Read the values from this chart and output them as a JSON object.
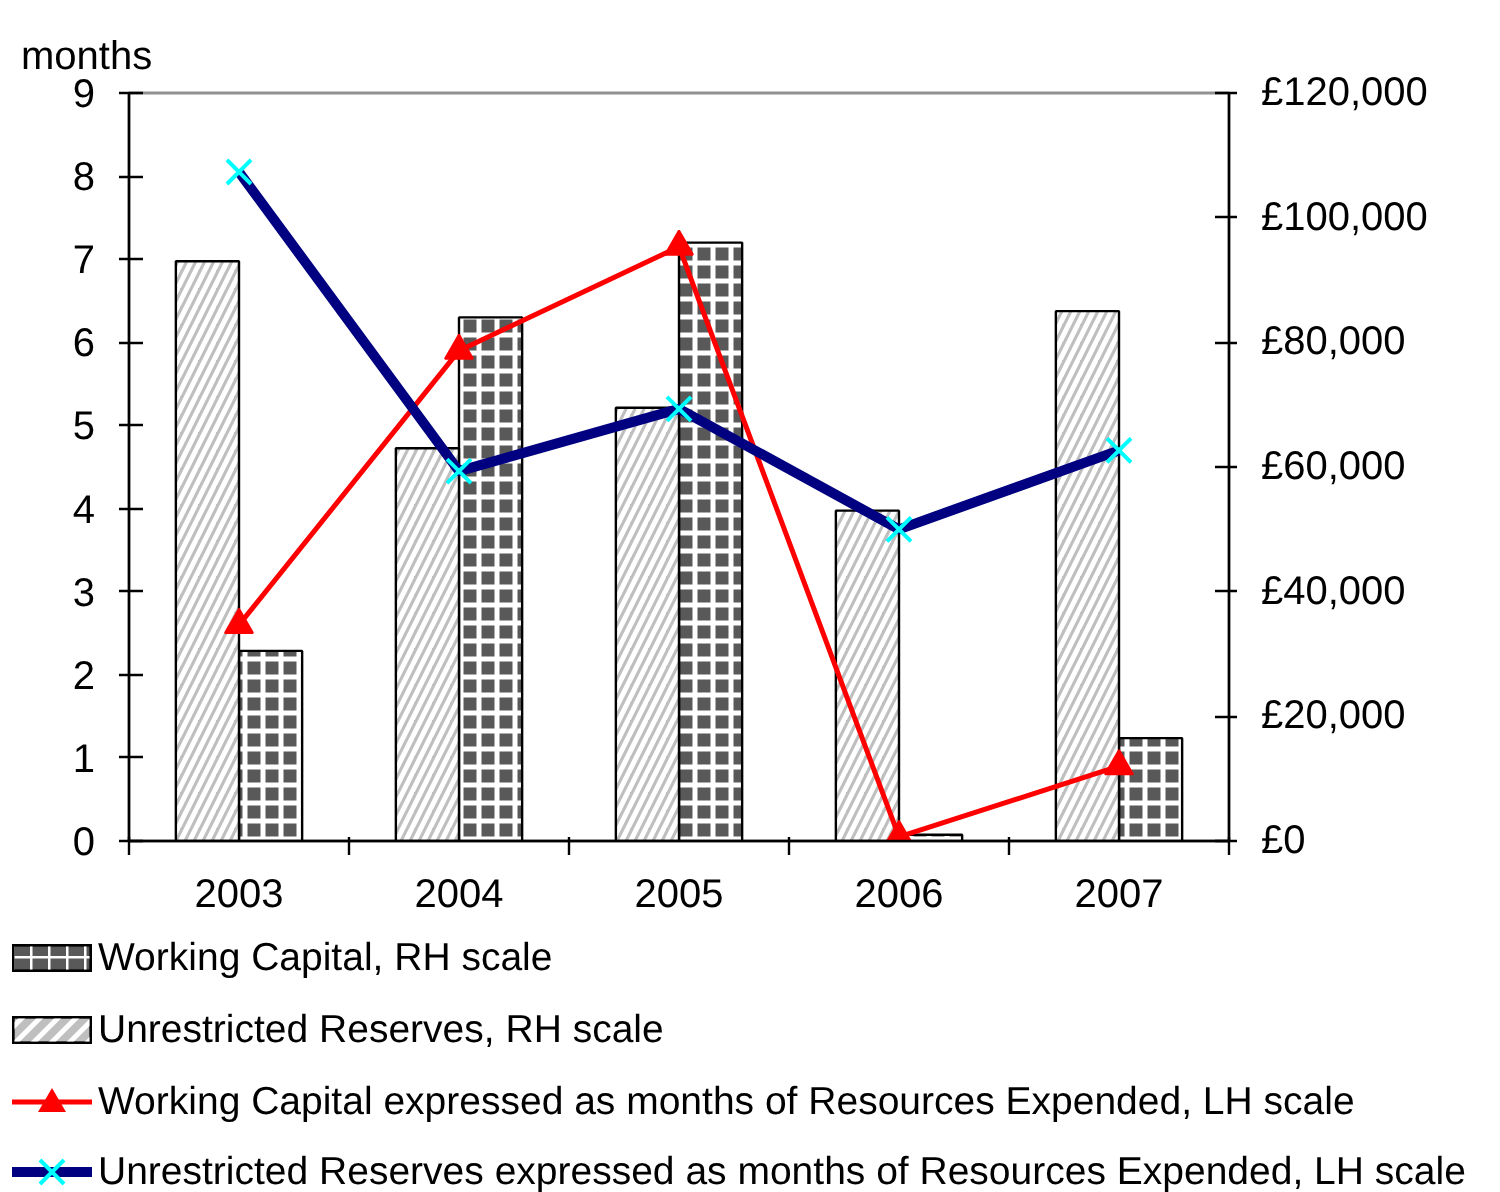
{
  "chart_data": {
    "type": "bar",
    "ylabel": "months",
    "categories": [
      "2003",
      "2004",
      "2005",
      "2006",
      "2007"
    ],
    "series": [
      {
        "name": "Working Capital, RH scale",
        "axis": "y2",
        "color": "#595959",
        "values": [
          30500,
          84000,
          96000,
          1000,
          16500
        ]
      },
      {
        "name": "Unrestricted Reserves, RH scale",
        "axis": "y2",
        "color": "#bfbfbf",
        "values": [
          93000,
          63000,
          69500,
          53000,
          85000
        ]
      },
      {
        "name": "Working Capital expressed as months of Resources Expended, LH scale",
        "type": "line",
        "color": "#ff0000",
        "marker": "triangle",
        "values": [
          2.6,
          5.9,
          7.15,
          0.05,
          0.9
        ]
      },
      {
        "name": "Unrestricted Reserves expressed as months of Resources Expended, LH scale",
        "type": "line",
        "color": "#000080",
        "marker": "cross",
        "values": [
          8.05,
          4.45,
          5.2,
          3.75,
          4.7
        ]
      }
    ],
    "ylim": [
      0,
      9
    ],
    "yticks": [
      0,
      1,
      2,
      3,
      4,
      5,
      6,
      7,
      8,
      9
    ],
    "y2lim": [
      0,
      120000
    ],
    "y2ticks": [
      {
        "value": 0,
        "label": "£0"
      },
      {
        "value": 20000,
        "label": "£20,000"
      },
      {
        "value": 40000,
        "label": "£40,000"
      },
      {
        "value": 60000,
        "label": "£60,000"
      },
      {
        "value": 80000,
        "label": "£80,000"
      },
      {
        "value": 100000,
        "label": "£100,000"
      },
      {
        "value": 120000,
        "label": "£120,000"
      }
    ],
    "legend": "bottom"
  }
}
